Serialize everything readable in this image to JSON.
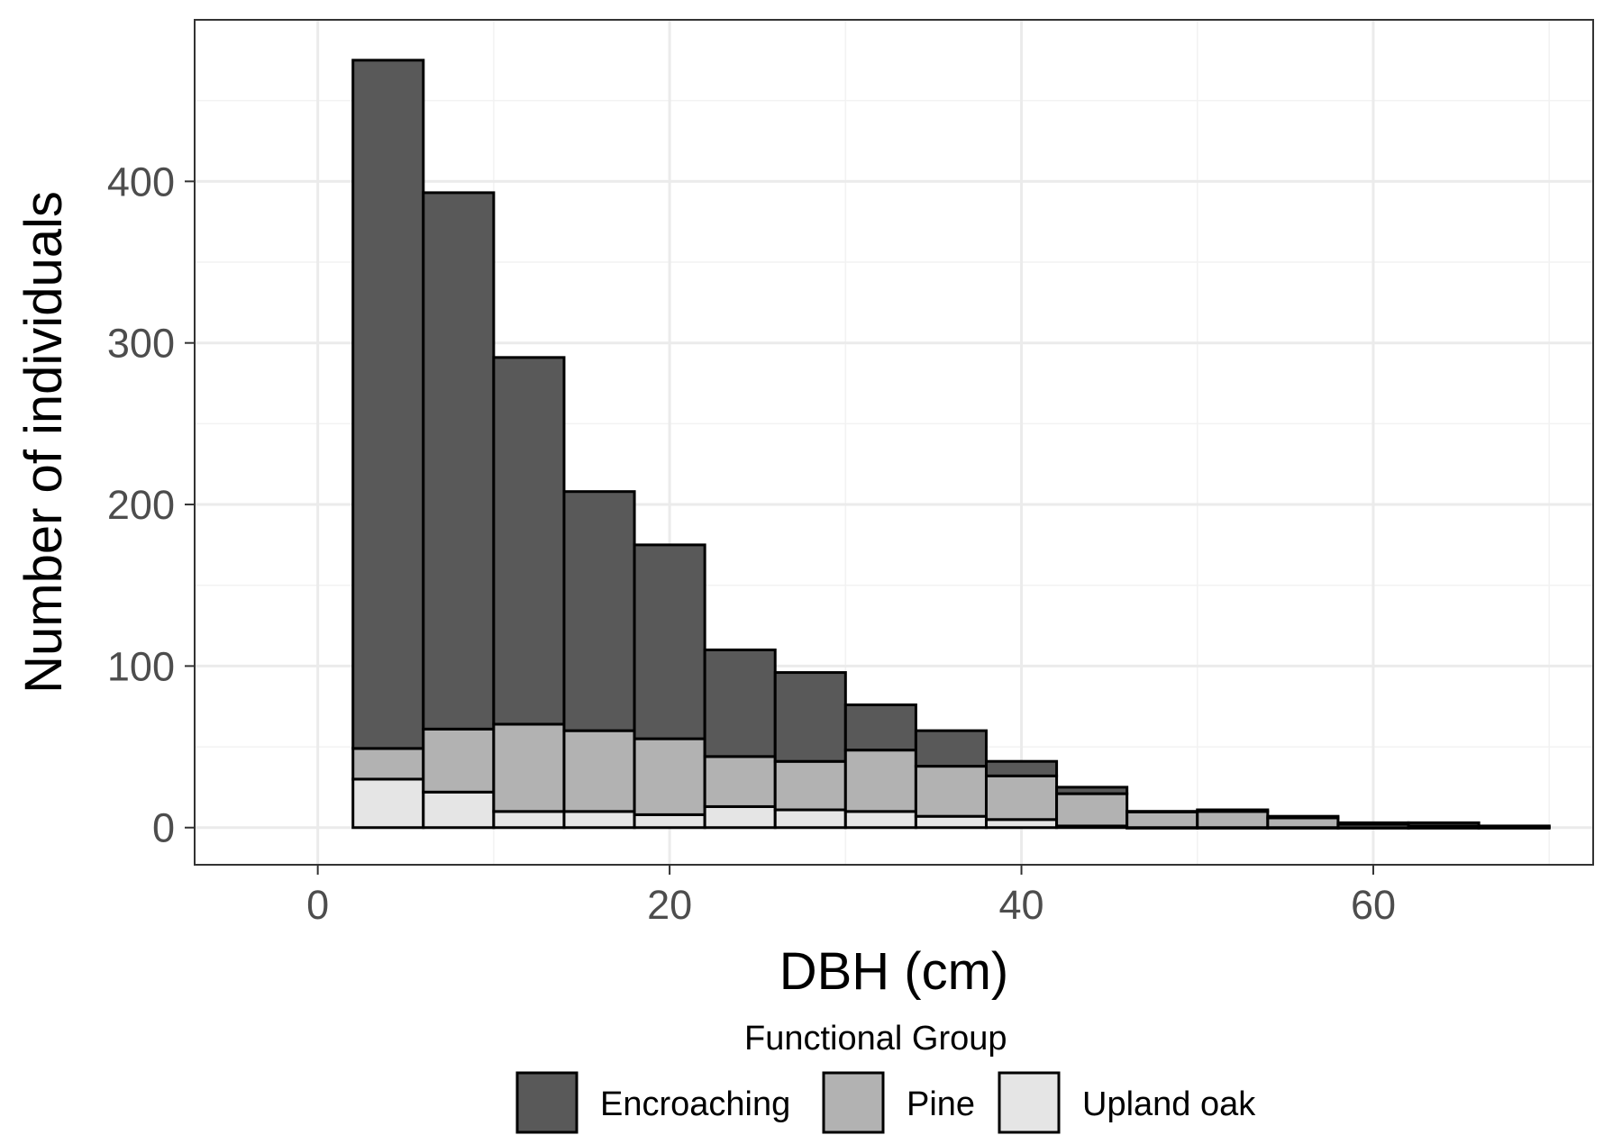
{
  "chart_data": {
    "type": "bar",
    "stacked": true,
    "histogram": true,
    "xlabel": "DBH (cm)",
    "ylabel": "Number of individuals",
    "xlim": [
      -7,
      72.5
    ],
    "ylim": [
      -23,
      500
    ],
    "xticks": [
      0,
      20,
      40,
      60
    ],
    "yticks": [
      0,
      100,
      200,
      300,
      400
    ],
    "grid": true,
    "bin_width": 4,
    "bins": [
      [
        2,
        6
      ],
      [
        6,
        10
      ],
      [
        10,
        14
      ],
      [
        14,
        18
      ],
      [
        18,
        22
      ],
      [
        22,
        26
      ],
      [
        26,
        30
      ],
      [
        30,
        34
      ],
      [
        34,
        38
      ],
      [
        38,
        42
      ],
      [
        42,
        46
      ],
      [
        46,
        50
      ],
      [
        50,
        54
      ],
      [
        54,
        58
      ],
      [
        58,
        62
      ],
      [
        62,
        66
      ],
      [
        66,
        70
      ]
    ],
    "series": [
      {
        "name": "Upland oak",
        "color": "#e5e5e5",
        "values": [
          30,
          22,
          10,
          10,
          8,
          13,
          11,
          10,
          7,
          5,
          1,
          0,
          0,
          0,
          0,
          0,
          0
        ]
      },
      {
        "name": "Pine",
        "color": "#b2b2b2",
        "values": [
          19,
          39,
          54,
          50,
          47,
          31,
          30,
          38,
          31,
          27,
          20,
          10,
          10,
          6,
          2,
          1,
          1
        ]
      },
      {
        "name": "Encroaching",
        "color": "#595959",
        "values": [
          426,
          332,
          227,
          148,
          120,
          66,
          55,
          28,
          22,
          9,
          4,
          0,
          1,
          1,
          1,
          2,
          0
        ]
      }
    ],
    "legend": {
      "title": "Functional Group",
      "position": "bottom",
      "items": [
        {
          "label": "Encroaching",
          "color": "#595959"
        },
        {
          "label": "Pine",
          "color": "#b2b2b2"
        },
        {
          "label": "Upland oak",
          "color": "#e5e5e5"
        }
      ]
    }
  }
}
